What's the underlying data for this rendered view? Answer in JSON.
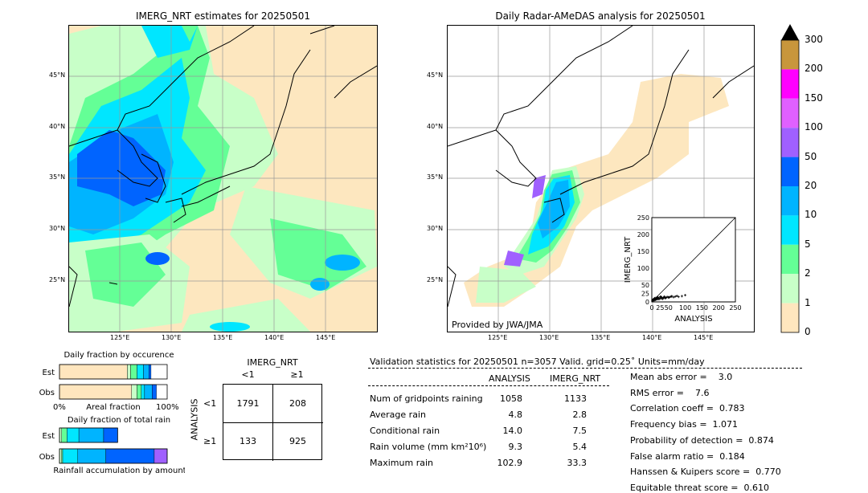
{
  "left_map": {
    "title": "IMERG_NRT estimates for 20250501",
    "lat_labels": [
      "45°N",
      "40°N",
      "35°N",
      "30°N",
      "25°N"
    ],
    "lon_labels": [
      "125°E",
      "130°E",
      "135°E",
      "140°E",
      "145°E"
    ]
  },
  "right_map": {
    "title": "Daily Radar-AMeDAS analysis for 20250501",
    "lat_labels": [
      "45°N",
      "40°N",
      "35°N",
      "30°N",
      "25°N"
    ],
    "lon_labels": [
      "125°E",
      "130°E",
      "135°E",
      "140°E",
      "145°E"
    ],
    "credit": "Provided by JWA/JMA"
  },
  "colorbar": {
    "ticks": [
      "300",
      "200",
      "150",
      "100",
      "50",
      "20",
      "10",
      "5",
      "2",
      "1",
      "0"
    ],
    "colors": [
      "#c8963c",
      "#ff00ff",
      "#e060ff",
      "#a060ff",
      "#0064ff",
      "#00b4ff",
      "#00e6ff",
      "#64ff96",
      "#c8ffc8",
      "#ffe6be"
    ]
  },
  "chart_data": [
    {
      "type": "scatter",
      "xlabel": "ANALYSIS",
      "ylabel": "IMERG_NRT",
      "xlim": [
        0,
        250
      ],
      "ylim": [
        0,
        250
      ],
      "x_ticks": [
        "0",
        "25",
        "50",
        "100",
        "150",
        "200",
        "250"
      ],
      "y_ticks": [
        "0",
        "25",
        "50",
        "100",
        "150",
        "200",
        "250"
      ],
      "diagonal": true,
      "points_x": [
        2,
        4,
        5,
        7,
        8,
        10,
        12,
        14,
        15,
        18,
        20,
        22,
        25,
        28,
        30,
        32,
        35,
        38,
        40,
        45,
        50,
        55,
        60,
        65,
        70,
        75,
        80,
        90,
        100,
        3,
        6,
        9,
        11,
        13,
        16,
        19,
        24,
        27,
        33,
        36,
        42,
        48,
        52,
        58
      ],
      "points_y": [
        3,
        5,
        8,
        4,
        10,
        6,
        12,
        7,
        9,
        14,
        11,
        8,
        15,
        10,
        13,
        9,
        12,
        16,
        11,
        14,
        13,
        15,
        17,
        14,
        16,
        18,
        15,
        17,
        20,
        6,
        9,
        11,
        7,
        10,
        13,
        8,
        12,
        16,
        10,
        14,
        12,
        15,
        13,
        16
      ]
    },
    {
      "type": "bar",
      "title": "Daily fraction by occurence",
      "categories": [
        "Est",
        "Obs"
      ],
      "xlabel": "Areal fraction",
      "x_ticks": [
        "0%",
        "100%"
      ],
      "series": [
        {
          "color": "#ffe6be",
          "values": [
            0.63,
            0.67
          ]
        },
        {
          "color": "#c8ffc8",
          "values": [
            0.03,
            0.05
          ]
        },
        {
          "color": "#64ff96",
          "values": [
            0.06,
            0.04
          ]
        },
        {
          "color": "#00e6ff",
          "values": [
            0.06,
            0.03
          ]
        },
        {
          "color": "#00b4ff",
          "values": [
            0.05,
            0.07
          ]
        },
        {
          "color": "#0064ff",
          "values": [
            0.02,
            0.04
          ]
        }
      ]
    },
    {
      "type": "bar",
      "title": "Daily fraction of total rain",
      "categories": [
        "Est",
        "Obs"
      ],
      "xlabel": "Rainfall accumulation by amount",
      "series": [
        {
          "color": "#c8ffc8",
          "values": [
            0.02,
            0.02
          ]
        },
        {
          "color": "#64ff96",
          "values": [
            0.05,
            0.01
          ]
        },
        {
          "color": "#00e6ff",
          "values": [
            0.11,
            0.14
          ]
        },
        {
          "color": "#00b4ff",
          "values": [
            0.23,
            0.26
          ]
        },
        {
          "color": "#0064ff",
          "values": [
            0.13,
            0.45
          ]
        },
        {
          "color": "#a060ff",
          "values": [
            0.0,
            0.12
          ]
        }
      ]
    }
  ],
  "contingency": {
    "title": "IMERG_NRT",
    "col_labels": [
      "<1",
      "≥1"
    ],
    "row_labels": [
      "<1",
      "≥1"
    ],
    "row_axis": "ANALYSIS",
    "cells": [
      [
        "1791",
        "208"
      ],
      [
        "133",
        "925"
      ]
    ]
  },
  "validation": {
    "header": "Validation statistics for 20250501  n=3057 Valid. grid=0.25˚ Units=mm/day",
    "col_analysis": "ANALYSIS",
    "col_imerg": "IMERG_NRT",
    "rows": [
      {
        "label": "Num of gridpoints raining",
        "a": "1058",
        "b": "1133"
      },
      {
        "label": "Average rain",
        "a": "4.8",
        "b": "2.8"
      },
      {
        "label": "Conditional rain",
        "a": "14.0",
        "b": "7.5"
      },
      {
        "label": "Rain volume (mm km²10⁶)",
        "a": "9.3",
        "b": "5.4"
      },
      {
        "label": "Maximum rain",
        "a": "102.9",
        "b": "33.3"
      }
    ],
    "scores": [
      "Mean abs error =    3.0",
      "RMS error =    7.6",
      "Correlation coeff =  0.783",
      "Frequency bias =  1.071",
      "Probability of detection =  0.874",
      "False alarm ratio =  0.184",
      "Hanssen & Kuipers score =  0.770",
      "Equitable threat score =  0.610"
    ]
  }
}
